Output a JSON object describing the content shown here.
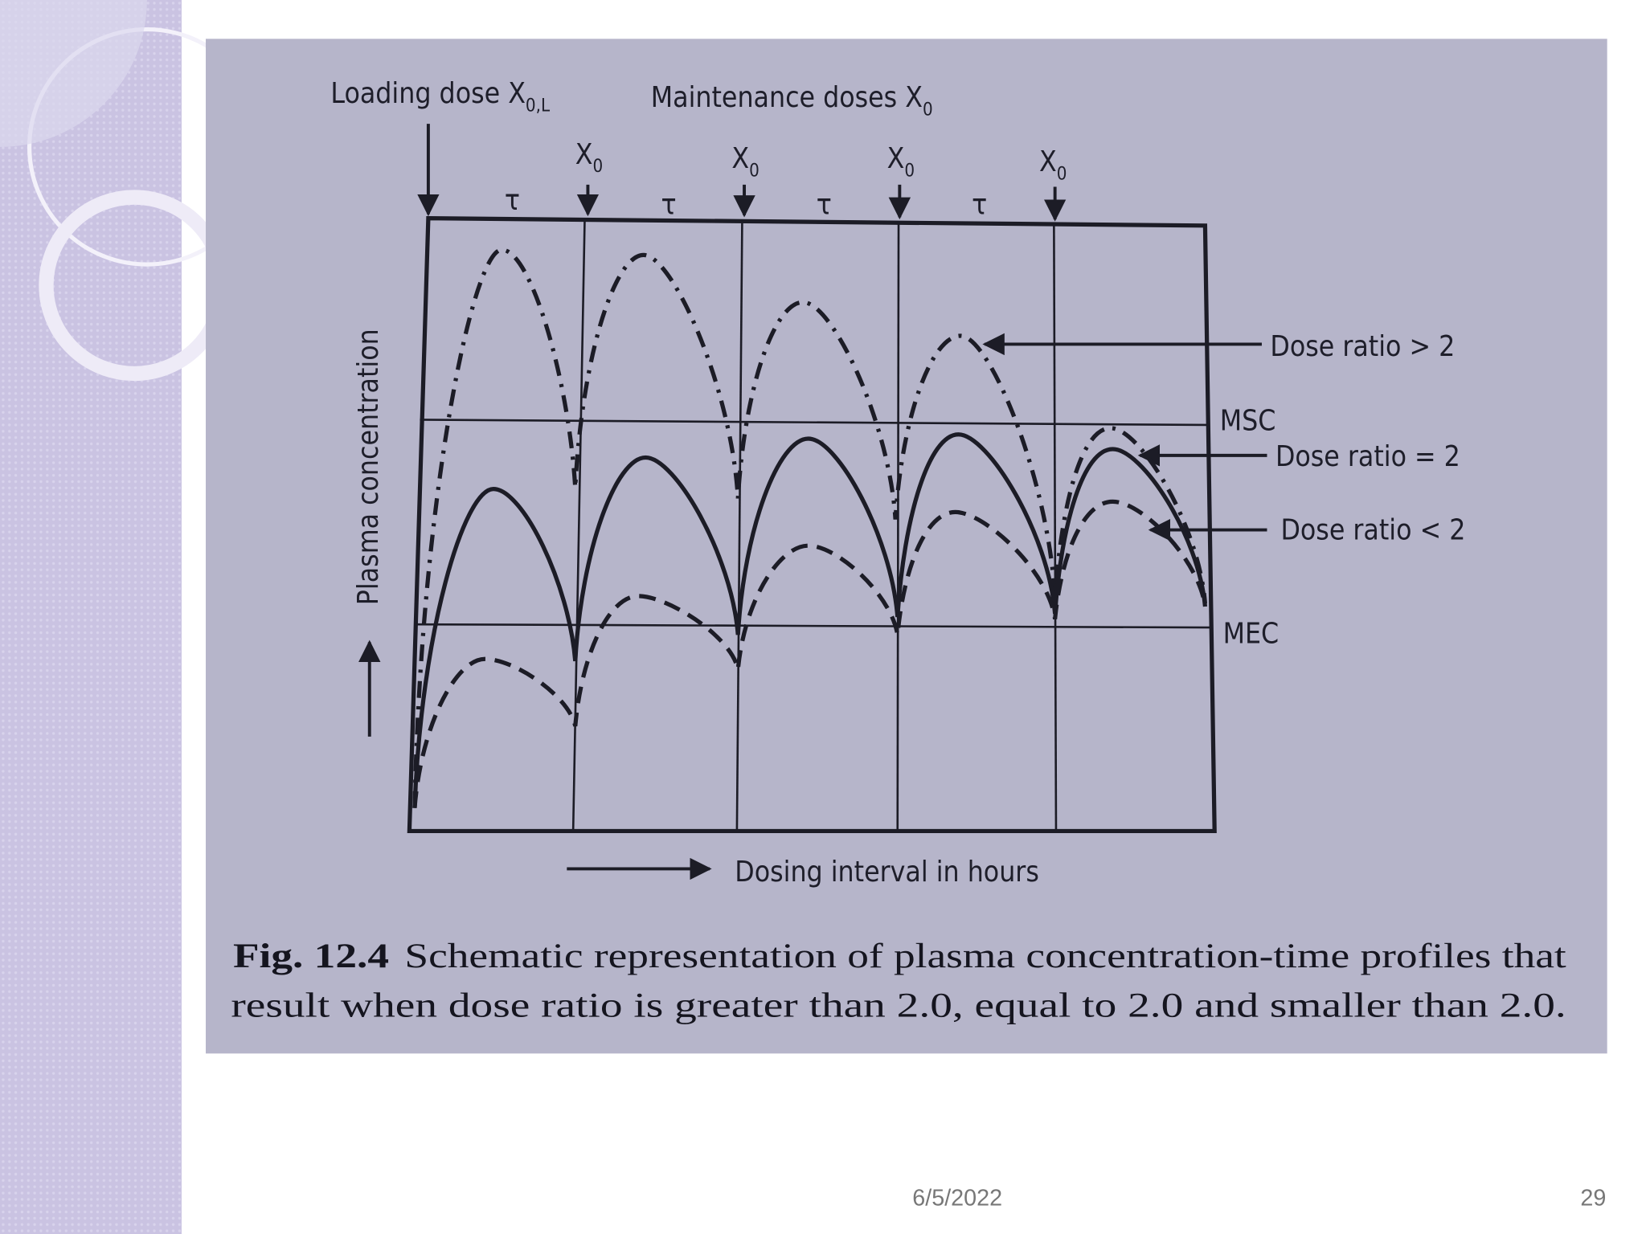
{
  "figure": {
    "loading_dose": {
      "label": "Loading dose X",
      "subscript": "0,L"
    },
    "maintenance_doses": {
      "label": "Maintenance doses X",
      "subscript": "0"
    },
    "dose_markers": [
      {
        "label": "X",
        "subscript": "0"
      },
      {
        "label": "X",
        "subscript": "0"
      },
      {
        "label": "X",
        "subscript": "0"
      },
      {
        "label": "X",
        "subscript": "0"
      }
    ],
    "intervals": [
      "τ",
      "τ",
      "τ",
      "τ"
    ],
    "y_axis_label": "Plasma concentration",
    "x_axis_label": "Dosing interval in hours",
    "levels": {
      "upper": "MSC",
      "lower": "MEC"
    },
    "curves": [
      "Dose ratio > 2",
      "Dose ratio = 2",
      "Dose ratio < 2"
    ],
    "caption": {
      "label": "Fig. 12.4",
      "lines": [
        "Schematic representation of plasma concentration-time profiles that",
        "result when dose ratio is greater than 2.0, equal to 2.0 and smaller than 2.0."
      ]
    }
  },
  "footer": {
    "date": "6/5/2022",
    "page": "29"
  }
}
